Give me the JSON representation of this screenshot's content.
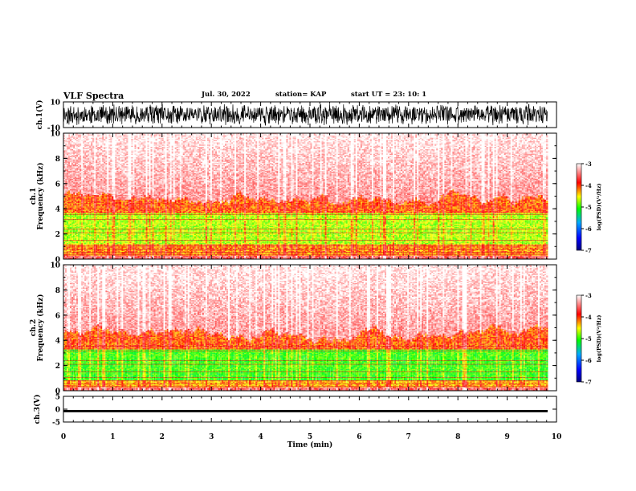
{
  "header": {
    "title": "VLF Spectra",
    "date": "Jul. 30, 2022",
    "station": "station= KAP",
    "start_ut": "start  UT  =   23: 10: 1"
  },
  "colors": {
    "trace": "#000000",
    "colormap": [
      "#0000ff",
      "#00aaff",
      "#00ff00",
      "#ffff00",
      "#ff0000",
      "#ffffff"
    ]
  },
  "chart_data": [
    {
      "type": "line",
      "id": "ch1-waveform",
      "ylabel": "ch.1(V)",
      "ylim": [
        -10,
        10
      ],
      "yticks": [
        "10",
        "-10"
      ],
      "xlim": [
        0,
        10
      ],
      "grid": false,
      "series": [
        {
          "values": "dense noise trace, amplitude approx. 4 to 9 V around 0"
        }
      ]
    },
    {
      "type": "heatmap",
      "id": "ch1-spectrogram",
      "ylabel": "ch.1\nFrequency (kHz)",
      "ylim": [
        0,
        10
      ],
      "yticks": [
        "0",
        "2",
        "4",
        "6",
        "8",
        "10"
      ],
      "xlim": [
        0,
        9.82
      ],
      "colorbar": {
        "label": "log(PSD)(V²/Hz)",
        "range": [
          -7,
          -3
        ],
        "ticks": [
          "-3",
          "-4",
          "-5",
          "-6",
          "-7"
        ]
      },
      "bands": [
        {
          "freq_range_khz": [
            0.3,
            1.2
          ],
          "log_psd": -4.2
        },
        {
          "freq_range_khz": [
            1.2,
            3.6
          ],
          "log_psd": -4.7
        },
        {
          "freq_range_khz": [
            3.6,
            4.8
          ],
          "log_psd": -4.1
        },
        {
          "freq_range_khz": [
            4.8,
            10
          ],
          "log_psd": -3.4
        }
      ]
    },
    {
      "type": "heatmap",
      "id": "ch2-spectrogram",
      "ylabel": "ch.2\nFrequency (kHz)",
      "ylim": [
        0,
        10
      ],
      "yticks": [
        "0",
        "2",
        "4",
        "6",
        "8",
        "10"
      ],
      "xlim": [
        0,
        9.82
      ],
      "colorbar": {
        "label": "log(PSD)(V²/Hz)",
        "range": [
          -7,
          -3
        ],
        "ticks": [
          "-3",
          "-4",
          "-5",
          "-6",
          "-7"
        ]
      },
      "bands": [
        {
          "freq_range_khz": [
            0.3,
            0.8
          ],
          "log_psd": -4.3
        },
        {
          "freq_range_khz": [
            0.8,
            3.3
          ],
          "log_psd": -5.0
        },
        {
          "freq_range_khz": [
            3.3,
            4.5
          ],
          "log_psd": -4.1
        },
        {
          "freq_range_khz": [
            4.5,
            10
          ],
          "log_psd": -3.4
        }
      ]
    },
    {
      "type": "line",
      "id": "ch3-waveform",
      "ylabel": "ch.3(V)",
      "ylim": [
        -5,
        5
      ],
      "yticks": [
        "5",
        "0",
        "-5"
      ],
      "xlim": [
        0,
        10
      ],
      "xlabel": "Time (min)",
      "xticks": [
        "0",
        "1",
        "2",
        "3",
        "4",
        "5",
        "6",
        "7",
        "8",
        "9",
        "10"
      ],
      "grid": false,
      "series": [
        {
          "values": "constant level approx. -0.5 V from 0 to 9.82 min"
        }
      ]
    }
  ]
}
